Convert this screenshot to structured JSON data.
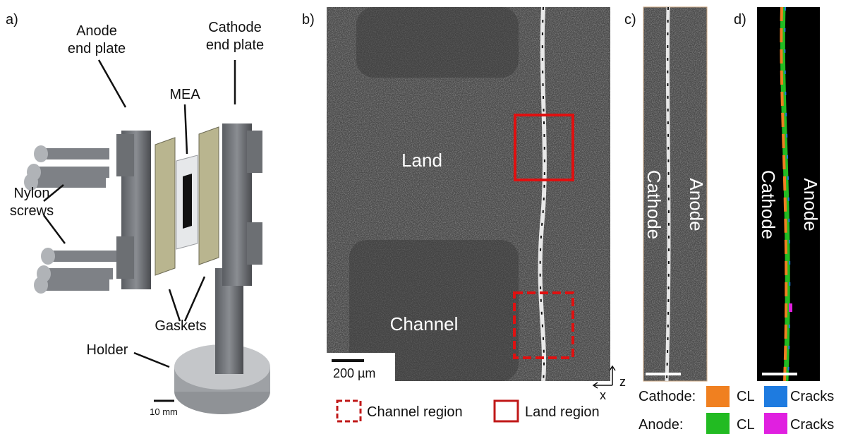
{
  "panel_a": {
    "label": "a)",
    "annotations": [
      {
        "lines": [
          "Anode",
          "end plate"
        ]
      },
      {
        "lines": [
          "Cathode",
          "end plate"
        ]
      },
      {
        "lines": [
          "MEA"
        ]
      },
      {
        "lines": [
          "Nylon",
          "screws"
        ]
      },
      {
        "lines": [
          "Gaskets"
        ]
      },
      {
        "lines": [
          "Holder"
        ]
      }
    ],
    "scale_bar": "10 mm"
  },
  "panel_b": {
    "label": "b)",
    "regions": [
      "Land",
      "Channel"
    ],
    "scale_bar": "200 µm",
    "axes": [
      "z",
      "x"
    ],
    "legend": [
      "Channel region",
      "Land region"
    ]
  },
  "panel_c": {
    "label": "c)",
    "sides": [
      "Cathode",
      "Anode"
    ]
  },
  "panel_d": {
    "label": "d)",
    "sides": [
      "Cathode",
      "Anode"
    ],
    "legend": [
      {
        "group": "Cathode:",
        "items": [
          "CL",
          "Cracks"
        ]
      },
      {
        "group": "Anode:",
        "items": [
          "CL",
          "Cracks"
        ]
      }
    ]
  }
}
